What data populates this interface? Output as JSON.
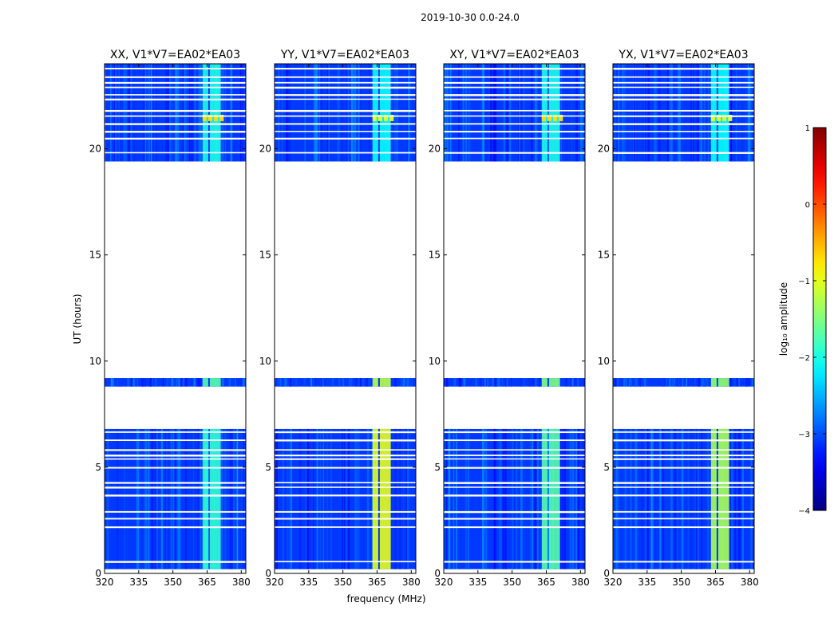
{
  "figure_title": "2019-10-30 0.0-24.0",
  "chart_data": {
    "type": "heatmap",
    "title": "2019-10-30 0.0-24.0",
    "xlabel": "frequency (MHz)",
    "ylabel": "UT (hours)",
    "xlim": [
      320,
      382
    ],
    "ylim": [
      0,
      24
    ],
    "x_ticks": [
      320,
      335,
      350,
      365,
      380
    ],
    "y_ticks": [
      0,
      5,
      10,
      15,
      20
    ],
    "colorbar": {
      "label": "log₁₀ amplitude",
      "range": [
        -4,
        1
      ],
      "ticks": [
        1,
        0,
        -1,
        -2,
        -3,
        -4
      ],
      "tick_labels": [
        "1",
        "0",
        "−1",
        "−2",
        "−3",
        "−4"
      ],
      "colormap": "jet"
    },
    "data_blocks_hours": [
      [
        0.2,
        6.8
      ],
      [
        8.8,
        9.2
      ],
      [
        19.4,
        24.0
      ]
    ],
    "rfi_band_mhz": [
      363,
      371
    ],
    "panels": [
      {
        "title": "XX, V1*V7=EA02*EA03",
        "rfi_level": [
          -1.9,
          -1.7,
          -2.0
        ],
        "peak_level": -0.7
      },
      {
        "title": "YY, V1*V7=EA02*EA03",
        "rfi_level": [
          -1.0,
          -1.2,
          -2.1
        ],
        "peak_level": -1.0
      },
      {
        "title": "XY, V1*V7=EA02*EA03",
        "rfi_level": [
          -1.7,
          -1.5,
          -2.0
        ],
        "peak_level": -0.7
      },
      {
        "title": "YX, V1*V7=EA02*EA03",
        "rfi_level": [
          -1.3,
          -1.4,
          -2.1
        ],
        "peak_level": -1.0
      }
    ]
  }
}
